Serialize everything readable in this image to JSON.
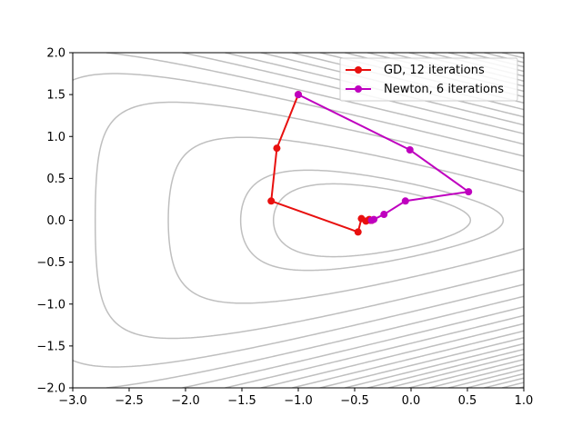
{
  "chart_data": {
    "type": "line",
    "title": "",
    "xlabel": "",
    "ylabel": "",
    "xlim": [
      -3.0,
      1.0
    ],
    "ylim": [
      -2.0,
      2.0
    ],
    "x_ticks": [
      -3.0,
      -2.5,
      -2.0,
      -1.5,
      -1.0,
      -0.5,
      0.0,
      0.5,
      1.0
    ],
    "y_ticks": [
      -2.0,
      -1.5,
      -1.0,
      -0.5,
      0.0,
      0.5,
      1.0,
      1.5,
      2.0
    ],
    "x_tick_labels": [
      "−3.0",
      "−2.5",
      "−2.0",
      "−1.5",
      "−1.0",
      "−0.5",
      "0.0",
      "0.5",
      "1.0"
    ],
    "y_tick_labels": [
      "−2.0",
      "−1.5",
      "−1.0",
      "−0.5",
      "0.0",
      "0.5",
      "1.0",
      "1.5",
      "2.0"
    ],
    "grid": false,
    "legend_position": "top-right",
    "background_contours": {
      "function": "exp(x+3y-0.1) + exp(x-3y-0.1) + exp(-x-0.1)",
      "color": "#bfbfbf",
      "levels": [
        3.6,
        4.5,
        8,
        15,
        25,
        38,
        55,
        75,
        100,
        130,
        165,
        205,
        250,
        300,
        360,
        430,
        510,
        600,
        700,
        820,
        960,
        1120,
        1300,
        1500,
        1750,
        2050,
        2400,
        2800,
        3300,
        3900,
        4600,
        5400,
        6400,
        7600,
        9000,
        10600
      ]
    },
    "series": [
      {
        "name": "GD, 12 iterations",
        "color": "#e8100f",
        "x": [
          -1.0,
          -1.19,
          -1.24,
          -0.47,
          -0.44,
          -0.4,
          -0.37,
          -0.36,
          -0.35,
          -0.35,
          -0.35,
          -0.35,
          -0.35
        ],
        "y": [
          1.5,
          0.86,
          0.23,
          -0.14,
          0.02,
          -0.01,
          0.01,
          0.0,
          0.0,
          0.0,
          0.0,
          0.0,
          0.0
        ]
      },
      {
        "name": "Newton, 6 iterations",
        "color": "#bf00bf",
        "x": [
          -1.0,
          -0.01,
          0.51,
          -0.05,
          -0.24,
          -0.33,
          -0.35
        ],
        "y": [
          1.5,
          0.84,
          0.34,
          0.23,
          0.07,
          0.01,
          0.0
        ]
      }
    ]
  }
}
